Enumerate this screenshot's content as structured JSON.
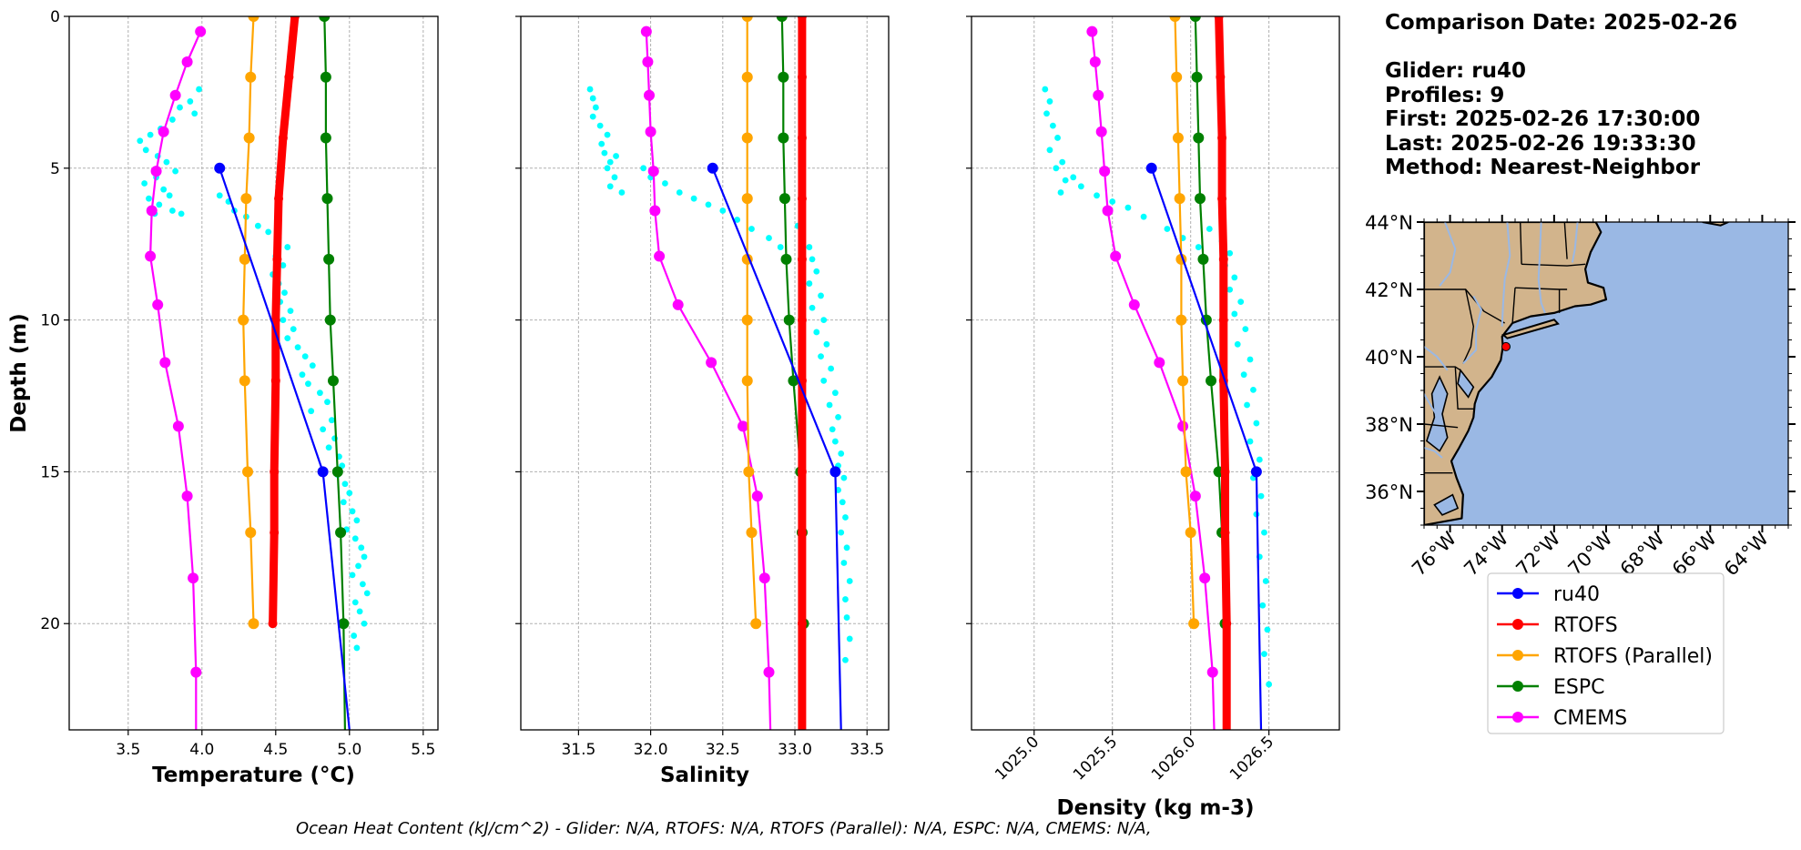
{
  "info": {
    "comparison": "Comparison Date: 2025-02-26",
    "glider": "Glider: ru40",
    "profiles": "Profiles: 9",
    "first": "First: 2025-02-26 17:30:00",
    "last": "Last: 2025-02-26 19:33:30",
    "method": "Method: Nearest-Neighbor"
  },
  "footer": "Ocean Heat Content (kJ/cm^2) - Glider: N/A,  RTOFS: N/A,  RTOFS (Parallel): N/A,  ESPC: N/A,  CMEMS: N/A,",
  "colors": {
    "ru40": "#0000ff",
    "RTOFS": "#ff0000",
    "RTOFS (Parallel)": "#ffa500",
    "ESPC": "#008000",
    "CMEMS": "#ff00ff",
    "glider_points": "#00ffff",
    "land": "#d2b48c",
    "ocean": "#9ab8e4"
  },
  "legend": [
    "ru40",
    "RTOFS",
    "RTOFS (Parallel)",
    "ESPC",
    "CMEMS"
  ],
  "chart_data": [
    {
      "type": "line",
      "xlabel": "Temperature (°C)",
      "ylabel": "Depth (m)",
      "xlim": [
        3.1,
        5.6
      ],
      "ylim": [
        23.5,
        0
      ],
      "xticks": [
        "3.5",
        "4.0",
        "4.5",
        "5.0",
        "5.5"
      ],
      "yticks": [
        "0",
        "5",
        "10",
        "15",
        "20"
      ],
      "grid": true,
      "series": [
        {
          "name": "ru40",
          "x": [
            4.12,
            4.82,
            5.0
          ],
          "y": [
            5,
            15,
            23.5
          ]
        },
        {
          "name": "RTOFS",
          "x": [
            4.63,
            4.59,
            4.55,
            4.52,
            4.51,
            4.5,
            4.5,
            4.49,
            4.49,
            4.48
          ],
          "y": [
            0,
            2,
            4,
            6,
            8,
            10,
            12,
            15,
            17,
            20
          ]
        },
        {
          "name": "RTOFS (Parallel)",
          "x": [
            4.35,
            4.33,
            4.32,
            4.3,
            4.29,
            4.28,
            4.29,
            4.31,
            4.33,
            4.35
          ],
          "y": [
            0,
            2,
            4,
            6,
            8,
            10,
            12,
            15,
            17,
            20
          ]
        },
        {
          "name": "ESPC",
          "x": [
            4.83,
            4.84,
            4.84,
            4.85,
            4.86,
            4.87,
            4.89,
            4.92,
            4.94,
            4.96,
            4.97
          ],
          "y": [
            0,
            2,
            4,
            6,
            8,
            10,
            12,
            15,
            17,
            20,
            23.5
          ]
        },
        {
          "name": "CMEMS",
          "x": [
            3.99,
            3.9,
            3.82,
            3.74,
            3.69,
            3.66,
            3.65,
            3.7,
            3.75,
            3.84,
            3.9,
            3.94,
            3.96,
            3.96
          ],
          "y": [
            0.5,
            1.5,
            2.6,
            3.8,
            5.1,
            6.4,
            7.9,
            9.5,
            11.4,
            13.5,
            15.8,
            18.5,
            21.6,
            23.5
          ]
        },
        {
          "name": "glider",
          "x": [
            3.98,
            3.92,
            3.85,
            3.95,
            3.8,
            3.72,
            3.65,
            3.58,
            3.62,
            3.7,
            3.76,
            3.82,
            3.69,
            3.61,
            3.74,
            3.78,
            3.64,
            3.71,
            3.8,
            3.68,
            3.86,
            4.12,
            4.18,
            4.22,
            4.3,
            4.38,
            4.45,
            4.52,
            4.58,
            4.5,
            4.55,
            4.48,
            4.52,
            4.56,
            4.53,
            4.6,
            4.55,
            4.62,
            4.58,
            4.65,
            4.7,
            4.75,
            4.68,
            4.72,
            4.8,
            4.85,
            4.74,
            4.88,
            4.82,
            4.9,
            4.86,
            4.93,
            4.95,
            4.92,
            4.97,
            5.0,
            4.96,
            5.02,
            5.05,
            4.98,
            5.04,
            5.08,
            5.1,
            5.06,
            5.02,
            5.09,
            5.12,
            5.04,
            5.07,
            5.1,
            5.03,
            5.05
          ],
          "y": [
            2.4,
            2.8,
            3.0,
            3.2,
            3.4,
            3.7,
            3.9,
            4.1,
            4.4,
            4.6,
            4.8,
            5.1,
            5.3,
            5.5,
            5.7,
            5.9,
            6.0,
            6.2,
            6.4,
            6.5,
            6.5,
            5.9,
            6.1,
            6.4,
            6.6,
            6.9,
            7.1,
            7.3,
            7.6,
            7.9,
            8.2,
            8.5,
            8.8,
            9.1,
            9.4,
            9.7,
            10.0,
            10.3,
            10.6,
            10.9,
            11.2,
            11.5,
            11.8,
            12.1,
            12.4,
            12.7,
            13.0,
            13.3,
            13.6,
            13.9,
            14.2,
            14.5,
            14.8,
            15.1,
            15.4,
            15.7,
            16.0,
            16.3,
            16.6,
            16.9,
            17.2,
            17.5,
            17.8,
            18.1,
            18.4,
            18.7,
            19.0,
            19.3,
            19.6,
            20.0,
            20.4,
            20.8
          ]
        }
      ]
    },
    {
      "type": "line",
      "xlabel": "Salinity",
      "xlim": [
        31.1,
        33.65
      ],
      "ylim": [
        23.5,
        0
      ],
      "xticks": [
        "31.5",
        "32.0",
        "32.5",
        "33.0",
        "33.5"
      ],
      "grid": true,
      "series": [
        {
          "name": "ru40",
          "x": [
            32.43,
            33.28,
            33.32
          ],
          "y": [
            5,
            15,
            23.5
          ]
        },
        {
          "name": "RTOFS",
          "x": [
            33.05,
            33.05,
            33.05,
            33.05,
            33.05,
            33.05,
            33.05,
            33.05,
            33.05,
            33.05,
            33.05
          ],
          "y": [
            0,
            2,
            4,
            6,
            8,
            10,
            12,
            15,
            17,
            20,
            23.5
          ]
        },
        {
          "name": "RTOFS (Parallel)",
          "x": [
            32.67,
            32.67,
            32.67,
            32.67,
            32.67,
            32.67,
            32.67,
            32.68,
            32.7,
            32.73
          ],
          "y": [
            0,
            2,
            4,
            6,
            8,
            10,
            12,
            15,
            17,
            20
          ]
        },
        {
          "name": "ESPC",
          "x": [
            32.91,
            32.92,
            32.92,
            32.93,
            32.94,
            32.96,
            32.99,
            33.04,
            33.05,
            33.06,
            33.06
          ],
          "y": [
            0,
            2,
            4,
            6,
            8,
            10,
            12,
            15,
            17,
            20,
            23.5
          ]
        },
        {
          "name": "CMEMS",
          "x": [
            31.97,
            31.98,
            31.99,
            32.0,
            32.02,
            32.03,
            32.06,
            32.19,
            32.42,
            32.64,
            32.74,
            32.79,
            32.82,
            32.83
          ],
          "y": [
            0.5,
            1.5,
            2.6,
            3.8,
            5.1,
            6.4,
            7.9,
            9.5,
            11.4,
            13.5,
            15.8,
            18.5,
            21.6,
            23.5
          ]
        },
        {
          "name": "glider",
          "x": [
            31.58,
            31.6,
            31.62,
            31.6,
            31.65,
            31.7,
            31.66,
            31.68,
            31.72,
            31.7,
            31.75,
            31.72,
            31.8,
            31.76,
            31.95,
            32.0,
            32.1,
            32.2,
            32.3,
            32.4,
            32.5,
            32.6,
            32.7,
            32.82,
            32.9,
            33.02,
            33.05,
            33.1,
            33.12,
            33.15,
            33.1,
            33.18,
            33.12,
            33.2,
            33.15,
            33.22,
            33.18,
            33.25,
            33.2,
            33.28,
            33.24,
            33.3,
            33.26,
            33.28,
            33.32,
            33.3,
            33.34,
            33.3,
            33.33,
            33.35,
            33.32,
            33.36,
            33.34,
            33.38,
            33.35,
            33.36,
            33.38,
            33.35
          ],
          "y": [
            2.4,
            2.7,
            3.0,
            3.3,
            3.6,
            3.9,
            4.2,
            4.5,
            4.8,
            5.0,
            5.3,
            5.6,
            5.8,
            4.6,
            5.0,
            5.3,
            5.5,
            5.8,
            6.0,
            6.2,
            6.4,
            6.7,
            7.0,
            7.3,
            7.6,
            6.9,
            7.2,
            7.6,
            8.0,
            8.4,
            8.8,
            9.2,
            9.6,
            10.0,
            10.4,
            10.8,
            11.2,
            11.6,
            12.0,
            12.4,
            12.8,
            13.2,
            13.6,
            14.0,
            14.4,
            14.8,
            15.2,
            15.6,
            16.0,
            16.5,
            17.0,
            17.5,
            18.0,
            18.6,
            19.2,
            19.8,
            20.5,
            21.2
          ]
        }
      ]
    },
    {
      "type": "line",
      "xlabel": "Density (kg m-3)",
      "xlim": [
        1024.6,
        1026.95
      ],
      "ylim": [
        23.5,
        0
      ],
      "xticks": [
        "1025.0",
        "1025.5",
        "1026.0",
        "1026.5"
      ],
      "grid": true,
      "series": [
        {
          "name": "ru40",
          "x": [
            1025.75,
            1026.42,
            1026.45
          ],
          "y": [
            5,
            15,
            23.5
          ]
        },
        {
          "name": "RTOFS",
          "x": [
            1026.18,
            1026.19,
            1026.2,
            1026.2,
            1026.21,
            1026.21,
            1026.21,
            1026.22,
            1026.22,
            1026.23,
            1026.23
          ],
          "y": [
            0,
            2,
            4,
            6,
            8,
            10,
            12,
            15,
            17,
            20,
            23.5
          ]
        },
        {
          "name": "RTOFS (Parallel)",
          "x": [
            1025.9,
            1025.91,
            1025.92,
            1025.93,
            1025.94,
            1025.94,
            1025.95,
            1025.97,
            1026.0,
            1026.02
          ],
          "y": [
            0,
            2,
            4,
            6,
            8,
            10,
            12,
            15,
            17,
            20
          ]
        },
        {
          "name": "ESPC",
          "x": [
            1026.03,
            1026.04,
            1026.05,
            1026.06,
            1026.08,
            1026.1,
            1026.13,
            1026.18,
            1026.2,
            1026.22,
            1026.23
          ],
          "y": [
            0,
            2,
            4,
            6,
            8,
            10,
            12,
            15,
            17,
            20,
            23.5
          ]
        },
        {
          "name": "CMEMS",
          "x": [
            1025.37,
            1025.39,
            1025.41,
            1025.43,
            1025.45,
            1025.47,
            1025.52,
            1025.64,
            1025.8,
            1025.95,
            1026.03,
            1026.09,
            1026.14,
            1026.15
          ],
          "y": [
            0.5,
            1.5,
            2.6,
            3.8,
            5.1,
            6.4,
            7.9,
            9.5,
            11.4,
            13.5,
            15.8,
            18.5,
            21.6,
            23.5
          ]
        },
        {
          "name": "glider",
          "x": [
            1025.07,
            1025.1,
            1025.08,
            1025.12,
            1025.15,
            1025.1,
            1025.18,
            1025.14,
            1025.2,
            1025.17,
            1025.25,
            1025.3,
            1025.4,
            1025.5,
            1025.6,
            1025.7,
            1025.85,
            1025.95,
            1026.05,
            1026.12,
            1026.2,
            1026.25,
            1026.22,
            1026.28,
            1026.25,
            1026.32,
            1026.28,
            1026.35,
            1026.3,
            1026.38,
            1026.34,
            1026.4,
            1026.36,
            1026.42,
            1026.38,
            1026.44,
            1026.4,
            1026.45,
            1026.42,
            1026.47,
            1026.44,
            1026.48,
            1026.46,
            1026.49,
            1026.47,
            1026.5
          ],
          "y": [
            2.4,
            2.8,
            3.2,
            3.6,
            4.0,
            4.4,
            4.8,
            5.0,
            5.4,
            5.8,
            5.3,
            5.6,
            5.9,
            6.1,
            6.3,
            6.6,
            7.0,
            7.3,
            7.6,
            7.0,
            7.4,
            7.8,
            8.2,
            8.6,
            9.0,
            9.4,
            9.8,
            10.3,
            10.8,
            11.3,
            11.8,
            12.3,
            12.8,
            13.4,
            14.0,
            14.6,
            15.2,
            15.8,
            16.4,
            17.0,
            17.8,
            18.6,
            19.4,
            20.2,
            21.0,
            22.0
          ]
        }
      ]
    },
    {
      "type": "map",
      "lat_ticks": [
        "44°N",
        "42°N",
        "40°N",
        "38°N",
        "36°N"
      ],
      "lon_ticks": [
        "76°W",
        "74°W",
        "72°W",
        "70°W",
        "68°W",
        "66°W",
        "64°W"
      ],
      "lat_range": [
        35,
        44
      ],
      "lon_range": [
        -77,
        -63
      ],
      "marker": {
        "lon": -73.85,
        "lat": 40.3
      }
    }
  ]
}
